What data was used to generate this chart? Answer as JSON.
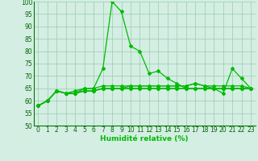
{
  "x": [
    0,
    1,
    2,
    3,
    4,
    5,
    6,
    7,
    8,
    9,
    10,
    11,
    12,
    13,
    14,
    15,
    16,
    17,
    18,
    19,
    20,
    21,
    22,
    23
  ],
  "line1": [
    58,
    60,
    64,
    63,
    63,
    65,
    65,
    73,
    100,
    96,
    82,
    80,
    71,
    72,
    69,
    67,
    65,
    65,
    65,
    65,
    63,
    73,
    69,
    65
  ],
  "line2": [
    58,
    60,
    64,
    63,
    64,
    65,
    65,
    66,
    66,
    66,
    66,
    66,
    66,
    66,
    66,
    66,
    66,
    67,
    66,
    66,
    66,
    66,
    66,
    65
  ],
  "line3": [
    58,
    60,
    64,
    63,
    63,
    64,
    64,
    65,
    65,
    65,
    65,
    65,
    65,
    65,
    65,
    65,
    65,
    65,
    65,
    65,
    65,
    65,
    65,
    65
  ],
  "line4": [
    58,
    60,
    64,
    63,
    63,
    64,
    64,
    65,
    65,
    65,
    65,
    65,
    65,
    65,
    65,
    65,
    65,
    65,
    65,
    65,
    65,
    65,
    65,
    65
  ],
  "line5": [
    58,
    60,
    64,
    63,
    63,
    64,
    64,
    65,
    65,
    65,
    66,
    66,
    66,
    66,
    66,
    66,
    66,
    67,
    66,
    65,
    65,
    65,
    65,
    65
  ],
  "line_color": "#00bb00",
  "bg_color": "#d4eee4",
  "grid_color": "#99ccaa",
  "xlabel": "Humidité relative (%)",
  "ylim": [
    50,
    100
  ],
  "xlim": [
    -0.5,
    23.5
  ],
  "yticks": [
    50,
    55,
    60,
    65,
    70,
    75,
    80,
    85,
    90,
    95,
    100
  ],
  "xticks": [
    0,
    1,
    2,
    3,
    4,
    5,
    6,
    7,
    8,
    9,
    10,
    11,
    12,
    13,
    14,
    15,
    16,
    17,
    18,
    19,
    20,
    21,
    22,
    23
  ],
  "xlabel_fontsize": 6.5,
  "tick_fontsize": 5.5,
  "marker": "D",
  "marker_size": 2.0,
  "line_width": 0.9
}
